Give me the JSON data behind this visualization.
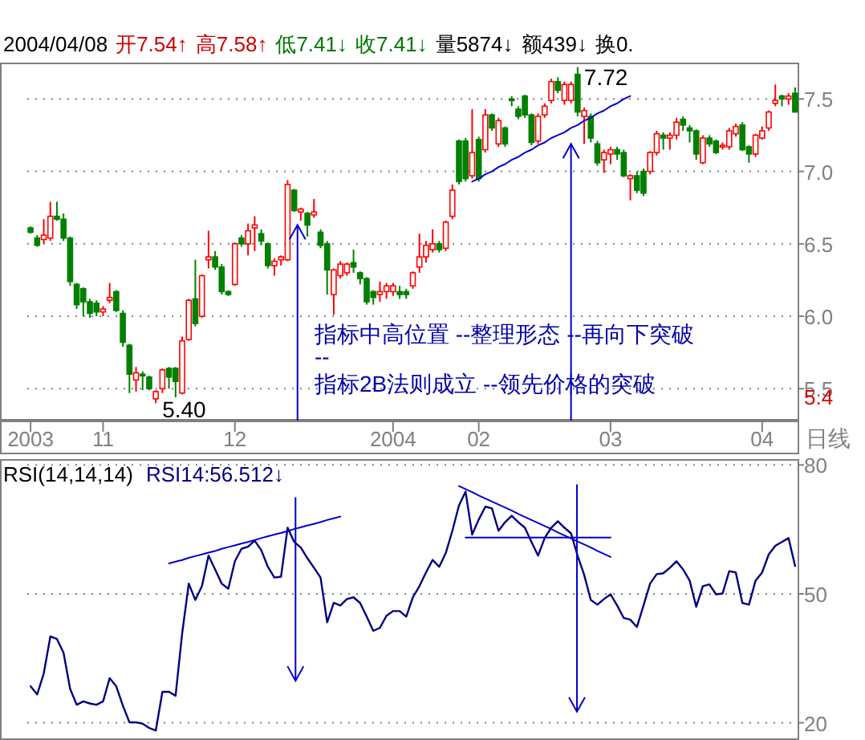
{
  "chart_data": [
    {
      "type": "candlestick",
      "categories": [
        "2003",
        null,
        null,
        null,
        null,
        null,
        null,
        null,
        null,
        null,
        null,
        "11",
        null,
        null,
        null,
        null,
        null,
        null,
        null,
        null,
        null,
        null,
        null,
        null,
        null,
        null,
        null,
        null,
        null,
        null,
        null,
        "12",
        null,
        null,
        null,
        null,
        null,
        null,
        null,
        null,
        null,
        null,
        null,
        null,
        null,
        null,
        null,
        null,
        null,
        null,
        null,
        null,
        null,
        null,
        null,
        "2004",
        null,
        null,
        null,
        null,
        null,
        null,
        null,
        null,
        null,
        null,
        null,
        null,
        "02",
        null,
        null,
        null,
        null,
        null,
        null,
        null,
        null,
        null,
        null,
        null,
        null,
        null,
        null,
        null,
        null,
        null,
        null,
        null,
        "03",
        null,
        null,
        null,
        null,
        null,
        null,
        null,
        null,
        null,
        null,
        null,
        null,
        null,
        null,
        null,
        null,
        null,
        null,
        null,
        null,
        null,
        null,
        "04",
        null,
        null,
        null,
        null,
        null
      ],
      "ohlc": [
        [
          6.61,
          6.62,
          6.57,
          6.58
        ],
        [
          6.54,
          6.56,
          6.48,
          6.49
        ],
        [
          6.53,
          6.67,
          6.5,
          6.56
        ],
        [
          6.54,
          6.79,
          6.52,
          6.69
        ],
        [
          6.69,
          6.79,
          6.66,
          6.67
        ],
        [
          6.67,
          6.71,
          6.52,
          6.54
        ],
        [
          6.54,
          6.55,
          6.21,
          6.24
        ],
        [
          6.22,
          6.23,
          6.05,
          6.08
        ],
        [
          6.19,
          6.2,
          6.0,
          6.1
        ],
        [
          6.1,
          6.12,
          5.99,
          6.02
        ],
        [
          6.09,
          6.11,
          6.0,
          6.03
        ],
        [
          6.03,
          6.07,
          6.0,
          6.05
        ],
        [
          6.11,
          6.23,
          6.09,
          6.13
        ],
        [
          6.17,
          6.18,
          6.03,
          6.04
        ],
        [
          6.02,
          6.04,
          5.79,
          5.82
        ],
        [
          5.8,
          5.81,
          5.47,
          5.6
        ],
        [
          5.56,
          5.65,
          5.48,
          5.61
        ],
        [
          5.6,
          5.62,
          5.49,
          5.59
        ],
        [
          5.58,
          5.59,
          5.49,
          5.5
        ],
        [
          5.43,
          5.49,
          5.4,
          5.48
        ],
        [
          5.5,
          5.64,
          5.47,
          5.63
        ],
        [
          5.64,
          5.65,
          5.5,
          5.58
        ],
        [
          5.64,
          5.65,
          5.44,
          5.55
        ],
        [
          5.47,
          5.86,
          5.46,
          5.83
        ],
        [
          5.84,
          6.12,
          5.83,
          6.11
        ],
        [
          6.12,
          6.39,
          5.93,
          5.95
        ],
        [
          6.0,
          6.29,
          5.99,
          6.28
        ],
        [
          6.39,
          6.59,
          6.33,
          6.41
        ],
        [
          6.41,
          6.45,
          6.32,
          6.34
        ],
        [
          6.34,
          6.36,
          6.15,
          6.17
        ],
        [
          6.17,
          6.18,
          6.14,
          6.15
        ],
        [
          6.22,
          6.51,
          6.21,
          6.5
        ],
        [
          6.54,
          6.56,
          6.48,
          6.5
        ],
        [
          6.5,
          6.64,
          6.42,
          6.59
        ],
        [
          6.61,
          6.69,
          6.45,
          6.63
        ],
        [
          6.57,
          6.6,
          6.49,
          6.52
        ],
        [
          6.5,
          6.51,
          6.33,
          6.35
        ],
        [
          6.35,
          6.4,
          6.28,
          6.38
        ],
        [
          6.39,
          6.42,
          6.35,
          6.41
        ],
        [
          6.39,
          6.94,
          6.38,
          6.91
        ],
        [
          6.87,
          6.88,
          6.72,
          6.73
        ],
        [
          6.72,
          6.75,
          6.66,
          6.74
        ],
        [
          6.71,
          6.72,
          6.55,
          6.63
        ],
        [
          6.7,
          6.81,
          6.68,
          6.72
        ],
        [
          6.58,
          6.6,
          6.47,
          6.49
        ],
        [
          6.5,
          6.52,
          6.15,
          6.32
        ],
        [
          6.15,
          6.33,
          6.01,
          6.32
        ],
        [
          6.28,
          6.38,
          6.26,
          6.36
        ],
        [
          6.3,
          6.37,
          6.28,
          6.36
        ],
        [
          6.37,
          6.46,
          6.3,
          6.34
        ],
        [
          6.3,
          6.31,
          6.22,
          6.26
        ],
        [
          6.26,
          6.27,
          6.08,
          6.1
        ],
        [
          6.17,
          6.18,
          6.08,
          6.13
        ],
        [
          6.15,
          6.24,
          6.1,
          6.17
        ],
        [
          6.17,
          6.23,
          6.12,
          6.21
        ],
        [
          6.17,
          6.23,
          6.14,
          6.21
        ],
        [
          6.17,
          6.21,
          6.12,
          6.15
        ],
        [
          6.17,
          6.19,
          6.12,
          6.15
        ],
        [
          6.21,
          6.31,
          6.19,
          6.3
        ],
        [
          6.34,
          6.57,
          6.3,
          6.41
        ],
        [
          6.41,
          6.52,
          6.37,
          6.49
        ],
        [
          6.46,
          6.6,
          6.44,
          6.5
        ],
        [
          6.5,
          6.52,
          6.44,
          6.46
        ],
        [
          6.47,
          6.66,
          6.45,
          6.65
        ],
        [
          6.69,
          6.91,
          6.67,
          6.87
        ],
        [
          7.21,
          7.22,
          6.91,
          6.93
        ],
        [
          7.21,
          7.23,
          6.93,
          6.95
        ],
        [
          6.97,
          7.43,
          6.95,
          7.13
        ],
        [
          7.22,
          7.24,
          6.93,
          6.95
        ],
        [
          7.15,
          7.43,
          7.13,
          7.39
        ],
        [
          7.39,
          7.4,
          7.28,
          7.3
        ],
        [
          7.19,
          7.37,
          7.17,
          7.35
        ],
        [
          7.3,
          7.31,
          7.17,
          7.19
        ],
        [
          7.5,
          7.52,
          7.45,
          7.49
        ],
        [
          7.43,
          7.45,
          7.36,
          7.38
        ],
        [
          7.52,
          7.53,
          7.37,
          7.39
        ],
        [
          7.39,
          7.4,
          7.18,
          7.2
        ],
        [
          7.21,
          7.4,
          7.19,
          7.38
        ],
        [
          7.39,
          7.47,
          7.37,
          7.45
        ],
        [
          7.49,
          7.64,
          7.47,
          7.62
        ],
        [
          7.62,
          7.65,
          7.54,
          7.56
        ],
        [
          7.49,
          7.62,
          7.46,
          7.6
        ],
        [
          7.49,
          7.62,
          7.47,
          7.6
        ],
        [
          7.67,
          7.72,
          7.38,
          7.41
        ],
        [
          7.38,
          7.44,
          7.19,
          7.42
        ],
        [
          7.38,
          7.4,
          7.2,
          7.23
        ],
        [
          7.19,
          7.21,
          7.04,
          7.06
        ],
        [
          7.08,
          7.15,
          6.99,
          7.13
        ],
        [
          7.12,
          7.17,
          7.05,
          7.15
        ],
        [
          7.15,
          7.17,
          7.08,
          7.12
        ],
        [
          7.13,
          7.15,
          6.96,
          6.97
        ],
        [
          6.95,
          6.98,
          6.8,
          6.97
        ],
        [
          6.97,
          7.0,
          6.85,
          6.87
        ],
        [
          7.0,
          7.02,
          6.83,
          6.85
        ],
        [
          7.0,
          7.14,
          6.98,
          7.13
        ],
        [
          7.13,
          7.28,
          7.11,
          7.26
        ],
        [
          7.25,
          7.27,
          7.15,
          7.23
        ],
        [
          7.23,
          7.27,
          7.15,
          7.25
        ],
        [
          7.25,
          7.37,
          7.22,
          7.34
        ],
        [
          7.36,
          7.38,
          7.28,
          7.32
        ],
        [
          7.3,
          7.32,
          7.2,
          7.28
        ],
        [
          7.28,
          7.29,
          7.08,
          7.12
        ],
        [
          7.06,
          7.25,
          7.05,
          7.23
        ],
        [
          7.23,
          7.25,
          7.17,
          7.19
        ],
        [
          7.21,
          7.22,
          7.12,
          7.13
        ],
        [
          7.17,
          7.2,
          7.15,
          7.18
        ],
        [
          7.17,
          7.3,
          7.15,
          7.28
        ],
        [
          7.26,
          7.33,
          7.24,
          7.31
        ],
        [
          7.32,
          7.34,
          7.14,
          7.15
        ],
        [
          7.17,
          7.18,
          7.06,
          7.12
        ],
        [
          7.12,
          7.26,
          7.1,
          7.25
        ],
        [
          7.23,
          7.31,
          7.22,
          7.28
        ],
        [
          7.3,
          7.42,
          7.28,
          7.41
        ],
        [
          7.47,
          7.6,
          7.45,
          7.49
        ],
        [
          7.52,
          7.53,
          7.45,
          7.5
        ],
        [
          7.5,
          7.54,
          7.46,
          7.52
        ],
        [
          7.54,
          7.58,
          7.41,
          7.41
        ]
      ],
      "series": [
        {
          "type": "line",
          "color": "#0000cc",
          "values": [
            null,
            null,
            null,
            null,
            null,
            null,
            null,
            null,
            null,
            null,
            null,
            null,
            null,
            null,
            null,
            null,
            null,
            null,
            null,
            null,
            null,
            null,
            null,
            null,
            null,
            null,
            null,
            null,
            null,
            null,
            null,
            null,
            null,
            null,
            null,
            null,
            null,
            null,
            null,
            null,
            null,
            null,
            null,
            null,
            null,
            null,
            null,
            null,
            null,
            null,
            null,
            null,
            null,
            null,
            null,
            null,
            null,
            null,
            null,
            null,
            null,
            null,
            null,
            null,
            null,
            null,
            null,
            6.93,
            6.95,
            6.98,
            7.0,
            7.03,
            7.05,
            7.08,
            7.1,
            7.13,
            7.15,
            7.18,
            7.2,
            7.23,
            7.25,
            7.27,
            7.3,
            7.32,
            7.35,
            7.37,
            7.4,
            7.42,
            7.45,
            7.47,
            7.5,
            7.52,
            null,
            null,
            null,
            null,
            null,
            null,
            null,
            null,
            null,
            null,
            null,
            null,
            null,
            null,
            null,
            null,
            null,
            null,
            null,
            null,
            null,
            null,
            null,
            null,
            null
          ]
        }
      ],
      "ylim": [
        5.28,
        7.74
      ],
      "yticks": [
        {
          "value": 7.5,
          "label": "7.5"
        },
        {
          "value": 7,
          "label": "7.0"
        },
        {
          "value": 6.5,
          "label": "6.5"
        },
        {
          "value": 6,
          "label": "6.0"
        },
        {
          "value": 5.5,
          "label": "5.5"
        }
      ],
      "grid": "y",
      "annotations": [
        "2004/04/08",
        "开7.54↑",
        "高7.58↑",
        "低7.41↓",
        "收7.41↓",
        "量5874↓",
        "额439↓",
        "换0.",
        "指标中高位置  --整理形态  --再向下突破",
        "--",
        "指标2B法则成立  --领先价格的突破",
        "5.40",
        "7.72",
        "日线",
        "5.4"
      ]
    },
    {
      "type": "line",
      "title": "RSI(14,14,14)",
      "categories": [
        null,
        null,
        null,
        null,
        null,
        null,
        null,
        null,
        null,
        null,
        null,
        null,
        null,
        null,
        null,
        null,
        null,
        null,
        null,
        null,
        null,
        null,
        null,
        null,
        null,
        null,
        null,
        null,
        null,
        null,
        null,
        null,
        null,
        null,
        null,
        null,
        null,
        null,
        null,
        null,
        null,
        null,
        null,
        null,
        null,
        null,
        null,
        null,
        null,
        null,
        null,
        null,
        null,
        null,
        null,
        null,
        null,
        null,
        null,
        null,
        null,
        null,
        null,
        null,
        null,
        null,
        null,
        null,
        null,
        null,
        null,
        null,
        null,
        null,
        null,
        null,
        null,
        null,
        null,
        null,
        null,
        null,
        null,
        null,
        null,
        null,
        null,
        null,
        null,
        null,
        null,
        null,
        null,
        null,
        null,
        null,
        null,
        null,
        null,
        null,
        null,
        null,
        null,
        null,
        null,
        null,
        null,
        null,
        null,
        null,
        null,
        null,
        null,
        null,
        null,
        null,
        null
      ],
      "series": [
        {
          "name": "RSI14:56.512↓",
          "color": "#000080",
          "values": [
            28.5,
            26.6,
            31.5,
            40.1,
            39.5,
            36.3,
            27.9,
            24.2,
            25.0,
            24.5,
            24.2,
            25.0,
            30.4,
            28.5,
            24.0,
            20.1,
            20.1,
            19.8,
            18.8,
            18.2,
            27.2,
            27.2,
            26.3,
            40.8,
            52.4,
            48.6,
            51.8,
            58.9,
            55.7,
            52.4,
            51.2,
            57.6,
            60.5,
            61.0,
            62.4,
            60.2,
            56.3,
            53.8,
            54.0,
            65.4,
            62.1,
            60.8,
            58.3,
            56.1,
            53.8,
            43.4,
            47.9,
            47.3,
            48.8,
            49.2,
            47.9,
            44.7,
            41.4,
            42.1,
            44.9,
            46.0,
            46.0,
            44.7,
            49.2,
            51.8,
            55.0,
            57.9,
            56.3,
            59.5,
            64.7,
            70.6,
            73.8,
            63.8,
            67.3,
            70.3,
            69.9,
            64.7,
            66.7,
            68.2,
            66.7,
            65.4,
            62.1,
            58.9,
            63.0,
            65.4,
            66.9,
            65.4,
            64.1,
            58.9,
            54.4,
            48.6,
            47.5,
            48.8,
            49.9,
            47.3,
            44.4,
            44.0,
            42.3,
            47.3,
            52.4,
            54.6,
            54.8,
            56.1,
            57.6,
            55.7,
            53.1,
            47.0,
            51.8,
            52.2,
            49.9,
            50.1,
            55.3,
            55.0,
            47.9,
            47.5,
            53.1,
            55.0,
            59.2,
            61.2,
            62.1,
            63.0,
            56.5
          ]
        },
        {
          "type": "line",
          "color": "#0000cc",
          "values": [
            null,
            null,
            null,
            null,
            null,
            null,
            null,
            null,
            null,
            null,
            null,
            null,
            null,
            null,
            null,
            null,
            null,
            null,
            null,
            null,
            null,
            57.1,
            57.5,
            57.9,
            58.4,
            58.8,
            59.2,
            59.6,
            60.0,
            60.5,
            60.9,
            61.3,
            61.7,
            62.1,
            62.5,
            63.0,
            63.4,
            63.8,
            64.2,
            64.6,
            65.1,
            65.5,
            65.9,
            66.3,
            66.7,
            67.2,
            67.6,
            68.0,
            null,
            null,
            null,
            null,
            null,
            null,
            null,
            null,
            null,
            null,
            null,
            null,
            null,
            null,
            null,
            null,
            null,
            null,
            null,
            null,
            null,
            null,
            null,
            null,
            null,
            null,
            null,
            null,
            null,
            null,
            null,
            null,
            null,
            null,
            null,
            null,
            null,
            null,
            null,
            null,
            null,
            null,
            null,
            null,
            null,
            null,
            null,
            null,
            null,
            null,
            null,
            null,
            null,
            null,
            null,
            null,
            null,
            null,
            null,
            null,
            null,
            null,
            null,
            null,
            null,
            null,
            null,
            null,
            null
          ]
        },
        {
          "type": "line",
          "color": "#0000cc",
          "values": [
            null,
            null,
            null,
            null,
            null,
            null,
            null,
            null,
            null,
            null,
            null,
            null,
            null,
            null,
            null,
            null,
            null,
            null,
            null,
            null,
            null,
            null,
            null,
            null,
            null,
            null,
            null,
            null,
            null,
            null,
            null,
            null,
            null,
            null,
            null,
            null,
            null,
            null,
            null,
            null,
            null,
            null,
            null,
            null,
            null,
            null,
            null,
            null,
            null,
            null,
            null,
            null,
            null,
            null,
            null,
            null,
            null,
            null,
            null,
            null,
            null,
            null,
            null,
            null,
            null,
            75.1,
            74.4,
            73.7,
            72.9,
            72.2,
            71.5,
            70.8,
            70.1,
            69.4,
            68.6,
            67.9,
            67.2,
            66.5,
            65.8,
            65.1,
            64.3,
            63.6,
            62.9,
            62.2,
            61.5,
            60.8,
            60.0,
            59.3,
            58.6,
            null,
            null,
            null,
            null,
            null,
            null,
            null,
            null,
            null,
            null,
            null,
            null,
            null,
            null,
            null,
            null,
            null,
            null,
            null,
            null,
            null,
            null,
            null,
            null,
            null,
            null,
            null,
            null
          ]
        },
        {
          "type": "line",
          "color": "#0000cc",
          "values": [
            null,
            null,
            null,
            null,
            null,
            null,
            null,
            null,
            null,
            null,
            null,
            null,
            null,
            null,
            null,
            null,
            null,
            null,
            null,
            null,
            null,
            null,
            null,
            null,
            null,
            null,
            null,
            null,
            null,
            null,
            null,
            null,
            null,
            null,
            null,
            null,
            null,
            null,
            null,
            null,
            null,
            null,
            null,
            null,
            null,
            null,
            null,
            null,
            null,
            null,
            null,
            null,
            null,
            null,
            null,
            null,
            null,
            null,
            null,
            null,
            null,
            null,
            null,
            null,
            null,
            null,
            63.1,
            63.1,
            63.1,
            63.1,
            63.1,
            63.1,
            63.1,
            63.1,
            63.1,
            63.1,
            63.1,
            63.1,
            63.1,
            63.1,
            63.1,
            63.1,
            63.1,
            63.1,
            63.1,
            63.1,
            63.1,
            63.1,
            63.1,
            null,
            null,
            null,
            null,
            null,
            null,
            null,
            null,
            null,
            null,
            null,
            null,
            null,
            null,
            null,
            null,
            null,
            null,
            null,
            null,
            null,
            null,
            null,
            null,
            null,
            null,
            null,
            null
          ]
        }
      ],
      "ylim": [
        16,
        81
      ],
      "yticks": [
        20,
        50,
        80
      ],
      "grid": "y",
      "legend": "top left",
      "tick_labels": "y"
    }
  ]
}
